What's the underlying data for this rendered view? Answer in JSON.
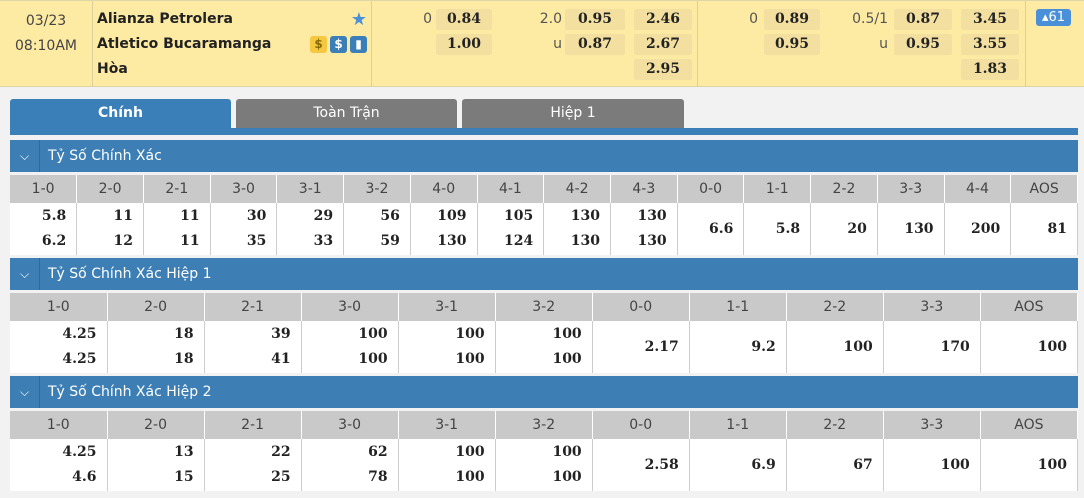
{
  "match": {
    "date": "03/23",
    "time": "08:10AM",
    "home": "Alianza Petrolera",
    "away": "Atletico Bucaramanga",
    "draw": "Hòa",
    "more_count": "61",
    "icons": [
      "star-icon",
      "coin-icon",
      "dollar-icon",
      "stats-icon"
    ],
    "ft": {
      "hdp_line": "0",
      "hdp_home": "0.84",
      "hdp_away": "1.00",
      "ou_line": "2.0",
      "ou_u": "u",
      "ou_over": "0.95",
      "ou_under": "0.87",
      "x1": "2.46",
      "x2": "2.67",
      "xd": "2.95"
    },
    "h1": {
      "hdp_line": "0",
      "hdp_home": "0.89",
      "hdp_away": "0.95",
      "ou_line": "0.5/1",
      "ou_u": "u",
      "ou_over": "0.87",
      "ou_under": "0.95",
      "x1": "3.45",
      "x2": "3.55",
      "xd": "1.83"
    }
  },
  "tabs": [
    "Chính",
    "Toàn Trận",
    "Hiệp 1"
  ],
  "sections": [
    {
      "title": "Tỷ Số Chính Xác",
      "headers": [
        "1-0",
        "2-0",
        "2-1",
        "3-0",
        "3-1",
        "3-2",
        "4-0",
        "4-1",
        "4-2",
        "4-3",
        "0-0",
        "1-1",
        "2-2",
        "3-3",
        "4-4",
        "AOS"
      ],
      "home": [
        "5.8",
        "11",
        "11",
        "30",
        "29",
        "56",
        "109",
        "105",
        "130",
        "130"
      ],
      "away": [
        "6.2",
        "12",
        "11",
        "35",
        "33",
        "59",
        "130",
        "124",
        "130",
        "130"
      ],
      "draws": [
        "6.6",
        "5.8",
        "20",
        "130",
        "200",
        "81"
      ]
    },
    {
      "title": "Tỷ Số Chính Xác Hiệp 1",
      "headers": [
        "1-0",
        "2-0",
        "2-1",
        "3-0",
        "3-1",
        "3-2",
        "0-0",
        "1-1",
        "2-2",
        "3-3",
        "AOS"
      ],
      "home": [
        "4.25",
        "18",
        "39",
        "100",
        "100",
        "100"
      ],
      "away": [
        "4.25",
        "18",
        "41",
        "100",
        "100",
        "100"
      ],
      "draws": [
        "2.17",
        "9.2",
        "100",
        "170",
        "100"
      ]
    },
    {
      "title": "Tỷ Số Chính Xác Hiệp 2",
      "headers": [
        "1-0",
        "2-0",
        "2-1",
        "3-0",
        "3-1",
        "3-2",
        "0-0",
        "1-1",
        "2-2",
        "3-3",
        "AOS"
      ],
      "home": [
        "4.25",
        "13",
        "22",
        "62",
        "100",
        "100"
      ],
      "away": [
        "4.6",
        "15",
        "25",
        "78",
        "100",
        "100"
      ],
      "draws": [
        "2.58",
        "6.9",
        "67",
        "100",
        "100"
      ]
    }
  ]
}
